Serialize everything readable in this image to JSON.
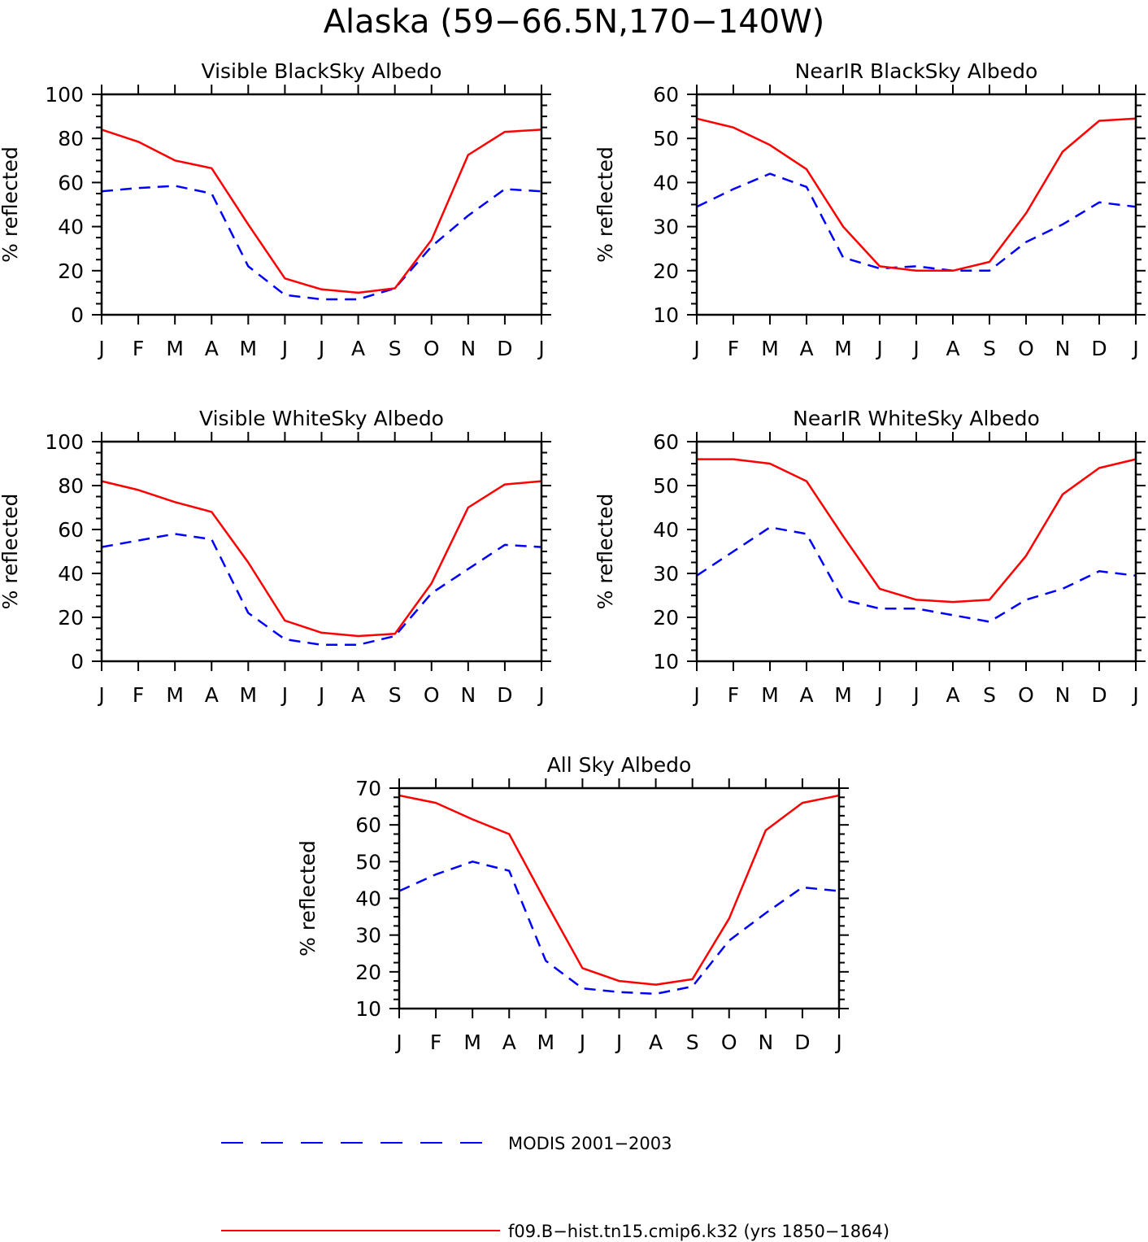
{
  "page_title": "Alaska (59−66.5N,170−140W)",
  "legend": {
    "placement": "bottom",
    "entries": [
      {
        "label": "MODIS 2001−2003",
        "color": "#0000ff",
        "style": "dashed"
      },
      {
        "label": "f09.B−hist.tn15.cmip6.k32 (yrs 1850−1864)",
        "color": "#ff0000",
        "style": "solid"
      }
    ]
  },
  "chart_data": [
    {
      "type": "line",
      "title": "Visible BlackSky Albedo",
      "ylabel": "% reflected",
      "xlabel": "",
      "categories": [
        "J",
        "F",
        "M",
        "A",
        "M",
        "J",
        "J",
        "A",
        "S",
        "O",
        "N",
        "D",
        "J"
      ],
      "ylim": [
        0,
        100
      ],
      "yticks": [
        0,
        20,
        40,
        60,
        80,
        100
      ],
      "series": [
        {
          "name": "MODIS 2001−2003",
          "color": "#0000ff",
          "style": "dashed",
          "values": [
            56,
            57.5,
            58.5,
            55,
            22,
            9,
            7,
            7,
            12,
            31,
            45,
            57,
            56
          ]
        },
        {
          "name": "f09.B−hist.tn15.cmip6.k32 (yrs 1850−1864)",
          "color": "#ff0000",
          "style": "solid",
          "values": [
            84,
            78.5,
            70,
            66.5,
            41,
            16.5,
            11.5,
            10,
            12,
            34,
            72.5,
            83,
            84
          ]
        }
      ]
    },
    {
      "type": "line",
      "title": "NearIR BlackSky Albedo",
      "ylabel": "% reflected",
      "xlabel": "",
      "categories": [
        "J",
        "F",
        "M",
        "A",
        "M",
        "J",
        "J",
        "A",
        "S",
        "O",
        "N",
        "D",
        "J"
      ],
      "ylim": [
        10,
        60
      ],
      "yticks": [
        10,
        20,
        30,
        40,
        50,
        60
      ],
      "series": [
        {
          "name": "MODIS 2001−2003",
          "color": "#0000ff",
          "style": "dashed",
          "values": [
            34.5,
            38.5,
            42,
            39,
            23,
            20.5,
            21,
            20,
            20,
            26.5,
            30.5,
            35.5,
            34.5
          ]
        },
        {
          "name": "f09.B−hist.tn15.cmip6.k32 (yrs 1850−1864)",
          "color": "#ff0000",
          "style": "solid",
          "values": [
            54.5,
            52.5,
            48.5,
            43,
            30,
            21,
            20,
            20,
            22,
            33,
            47,
            54,
            54.5
          ]
        }
      ]
    },
    {
      "type": "line",
      "title": "Visible WhiteSky Albedo",
      "ylabel": "% reflected",
      "xlabel": "",
      "categories": [
        "J",
        "F",
        "M",
        "A",
        "M",
        "J",
        "J",
        "A",
        "S",
        "O",
        "N",
        "D",
        "J"
      ],
      "ylim": [
        0,
        100
      ],
      "yticks": [
        0,
        20,
        40,
        60,
        80,
        100
      ],
      "series": [
        {
          "name": "MODIS 2001−2003",
          "color": "#0000ff",
          "style": "dashed",
          "values": [
            52,
            55,
            58,
            55.5,
            22,
            10,
            7.5,
            7.5,
            11.5,
            31,
            42,
            53,
            52
          ]
        },
        {
          "name": "f09.B−hist.tn15.cmip6.k32 (yrs 1850−1864)",
          "color": "#ff0000",
          "style": "solid",
          "values": [
            82,
            78,
            72.5,
            68,
            45,
            18.5,
            13,
            11.5,
            12.5,
            35.5,
            70,
            80.5,
            82
          ]
        }
      ]
    },
    {
      "type": "line",
      "title": "NearIR WhiteSky Albedo",
      "ylabel": "% reflected",
      "xlabel": "",
      "categories": [
        "J",
        "F",
        "M",
        "A",
        "M",
        "J",
        "J",
        "A",
        "S",
        "O",
        "N",
        "D",
        "J"
      ],
      "ylim": [
        10,
        60
      ],
      "yticks": [
        10,
        20,
        30,
        40,
        50,
        60
      ],
      "series": [
        {
          "name": "MODIS 2001−2003",
          "color": "#0000ff",
          "style": "dashed",
          "values": [
            29.5,
            35,
            40.5,
            39,
            24,
            22,
            22,
            20.5,
            19,
            24,
            26.5,
            30.5,
            29.5
          ]
        },
        {
          "name": "f09.B−hist.tn15.cmip6.k32 (yrs 1850−1864)",
          "color": "#ff0000",
          "style": "solid",
          "values": [
            56,
            56,
            55,
            51,
            38.5,
            26.5,
            24,
            23.5,
            24,
            34,
            48,
            54,
            56
          ]
        }
      ]
    },
    {
      "type": "line",
      "title": "All Sky Albedo",
      "ylabel": "% reflected",
      "xlabel": "",
      "categories": [
        "J",
        "F",
        "M",
        "A",
        "M",
        "J",
        "J",
        "A",
        "S",
        "O",
        "N",
        "D",
        "J"
      ],
      "ylim": [
        10,
        70
      ],
      "yticks": [
        10,
        20,
        30,
        40,
        50,
        60,
        70
      ],
      "series": [
        {
          "name": "MODIS 2001−2003",
          "color": "#0000ff",
          "style": "dashed",
          "values": [
            42,
            46.5,
            50,
            47.5,
            23,
            15.5,
            14.5,
            14,
            16,
            28.5,
            36,
            43,
            42
          ]
        },
        {
          "name": "f09.B−hist.tn15.cmip6.k32 (yrs 1850−1864)",
          "color": "#ff0000",
          "style": "solid",
          "values": [
            68,
            66,
            61.5,
            57.5,
            39,
            21,
            17.5,
            16.5,
            18,
            34.5,
            58.5,
            66,
            68
          ]
        }
      ]
    }
  ]
}
